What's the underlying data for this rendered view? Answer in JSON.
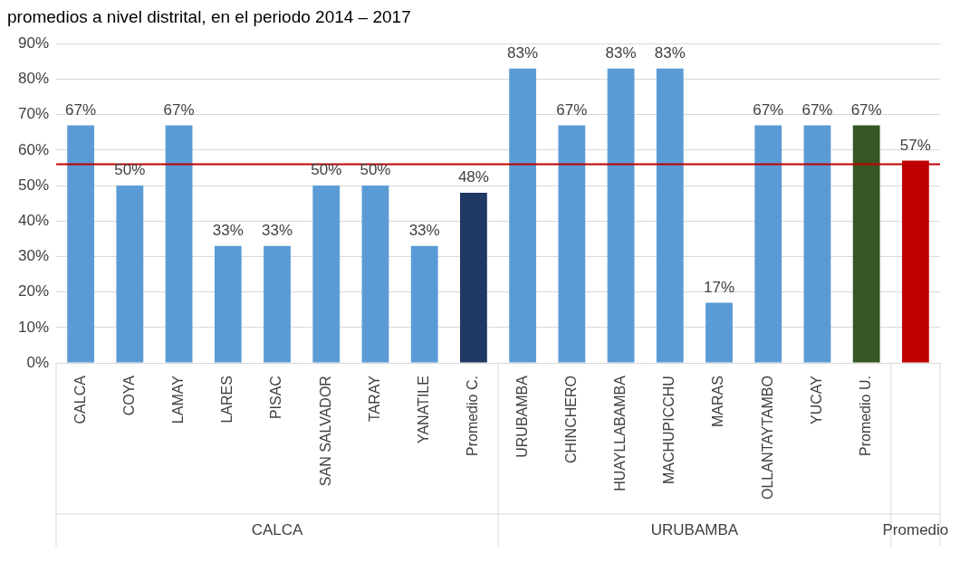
{
  "chart_data": {
    "type": "bar",
    "title": "promedios a nivel distrital, en el periodo 2014 – 2017",
    "categories": [
      "CALCA",
      "COYA",
      "LAMAY",
      "LARES",
      "PISAC",
      "SAN SALVADOR",
      "TARAY",
      "YANATILE",
      "Promedio C.",
      "URUBAMBA",
      "CHINCHERO",
      "HUAYLLABAMBA",
      "MACHUPICCHU",
      "MARAS",
      "OLLANTAYTAMBO",
      "YUCAY",
      "Promedio U.",
      null
    ],
    "values": [
      67,
      50,
      67,
      33,
      33,
      50,
      50,
      33,
      48,
      83,
      67,
      83,
      83,
      17,
      67,
      67,
      67,
      57
    ],
    "value_labels": [
      "67%",
      "50%",
      "67%",
      "33%",
      "33%",
      "50%",
      "50%",
      "33%",
      "48%",
      "83%",
      "67%",
      "83%",
      "83%",
      "17%",
      "67%",
      "67%",
      "67%",
      "57%"
    ],
    "colors": [
      "#5b9bd5",
      "#5b9bd5",
      "#5b9bd5",
      "#5b9bd5",
      "#5b9bd5",
      "#5b9bd5",
      "#5b9bd5",
      "#5b9bd5",
      "#1f3864",
      "#5b9bd5",
      "#5b9bd5",
      "#5b9bd5",
      "#5b9bd5",
      "#5b9bd5",
      "#5b9bd5",
      "#5b9bd5",
      "#375623",
      "#c00000"
    ],
    "ylim": [
      0,
      90
    ],
    "yticks": [
      {
        "value": 0,
        "label": "0%"
      },
      {
        "value": 10,
        "label": "10%"
      },
      {
        "value": 20,
        "label": "20%"
      },
      {
        "value": 30,
        "label": "30%"
      },
      {
        "value": 40,
        "label": "40%"
      },
      {
        "value": 50,
        "label": "50%"
      },
      {
        "value": 60,
        "label": "60%"
      },
      {
        "value": 70,
        "label": "70%"
      },
      {
        "value": 80,
        "label": "80%"
      },
      {
        "value": 90,
        "label": "90%"
      }
    ],
    "grid": "y",
    "legend": false,
    "ref_lines": [
      {
        "axis": "y",
        "value": 56,
        "color": "#c00000"
      }
    ],
    "annotations": [
      "CALCA",
      "URUBAMBA",
      "Promedio"
    ]
  }
}
